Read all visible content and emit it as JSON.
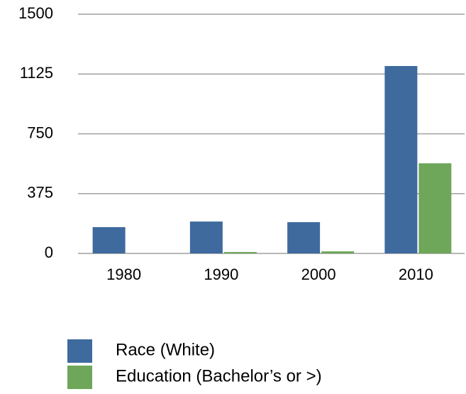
{
  "chart_data": {
    "type": "bar",
    "categories": [
      "1980",
      "1990",
      "2000",
      "2010"
    ],
    "series": [
      {
        "name": "Race (White)",
        "color": "#3e6a9e",
        "values": [
          165,
          200,
          196,
          1175
        ]
      },
      {
        "name": "Education (Bachelor’s or >)",
        "color": "#6ea65a",
        "values": [
          0,
          9,
          13,
          565
        ]
      }
    ],
    "ylim": [
      0,
      1500
    ],
    "yticks": [
      0,
      375,
      750,
      1125,
      1500
    ],
    "grid": true,
    "legend": "bottom"
  }
}
